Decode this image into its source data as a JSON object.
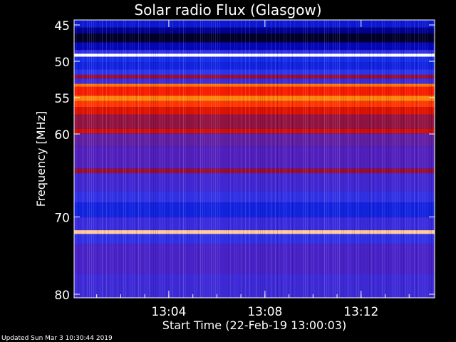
{
  "chart_data": {
    "type": "heatmap",
    "title": "Solar radio Flux (Glasgow)",
    "ylabel": "Frequency [MHz]",
    "xlabel": "Start Time (22-Feb-19 13:00:03)",
    "y_ticks": [
      "45",
      "50",
      "55",
      "60",
      "70",
      "80"
    ],
    "x_ticks": [
      "13:04",
      "13:08",
      "13:12"
    ],
    "ylim_mhz": [
      44.2,
      81.2
    ],
    "xlim_minutes": [
      0,
      15
    ],
    "colormap": [
      "#000010",
      "#0000b0",
      "#1e3cff",
      "#5020c0",
      "#802070",
      "#b00000",
      "#ff2000",
      "#ff8000",
      "#ffffff"
    ],
    "bands": [
      {
        "from": 44.2,
        "to": 45.2,
        "intensity": 0.18
      },
      {
        "from": 45.2,
        "to": 46.0,
        "intensity": 0.1
      },
      {
        "from": 46.0,
        "to": 47.2,
        "intensity": 0.02
      },
      {
        "from": 47.2,
        "to": 48.2,
        "intensity": 0.14
      },
      {
        "from": 48.2,
        "to": 48.7,
        "intensity": 0.3
      },
      {
        "from": 48.7,
        "to": 49.1,
        "intensity": 1.0
      },
      {
        "from": 49.1,
        "to": 49.8,
        "intensity": 0.22
      },
      {
        "from": 49.8,
        "to": 50.8,
        "intensity": 0.2
      },
      {
        "from": 50.8,
        "to": 51.5,
        "intensity": 0.28
      },
      {
        "from": 51.5,
        "to": 52.0,
        "intensity": 0.58
      },
      {
        "from": 52.0,
        "to": 52.7,
        "intensity": 0.32
      },
      {
        "from": 52.7,
        "to": 53.1,
        "intensity": 0.86
      },
      {
        "from": 53.1,
        "to": 54.3,
        "intensity": 0.74
      },
      {
        "from": 54.3,
        "to": 55.0,
        "intensity": 0.88
      },
      {
        "from": 55.0,
        "to": 55.8,
        "intensity": 0.78
      },
      {
        "from": 55.8,
        "to": 56.8,
        "intensity": 0.7
      },
      {
        "from": 56.8,
        "to": 58.7,
        "intensity": 0.55
      },
      {
        "from": 58.7,
        "to": 59.3,
        "intensity": 0.68
      },
      {
        "from": 59.3,
        "to": 61.0,
        "intensity": 0.42
      },
      {
        "from": 61.0,
        "to": 64.0,
        "intensity": 0.38
      },
      {
        "from": 64.0,
        "to": 64.6,
        "intensity": 0.58
      },
      {
        "from": 64.6,
        "to": 67.0,
        "intensity": 0.34
      },
      {
        "from": 67.0,
        "to": 68.5,
        "intensity": 0.3
      },
      {
        "from": 68.5,
        "to": 70.5,
        "intensity": 0.2
      },
      {
        "from": 70.5,
        "to": 72.2,
        "intensity": 0.32
      },
      {
        "from": 72.2,
        "to": 72.7,
        "intensity": 0.95
      },
      {
        "from": 72.7,
        "to": 74.0,
        "intensity": 0.3
      },
      {
        "from": 74.0,
        "to": 78.0,
        "intensity": 0.36
      },
      {
        "from": 78.0,
        "to": 81.2,
        "intensity": 0.33
      }
    ]
  },
  "updated": "Updated Sun Mar  3 10:30:44 2019"
}
